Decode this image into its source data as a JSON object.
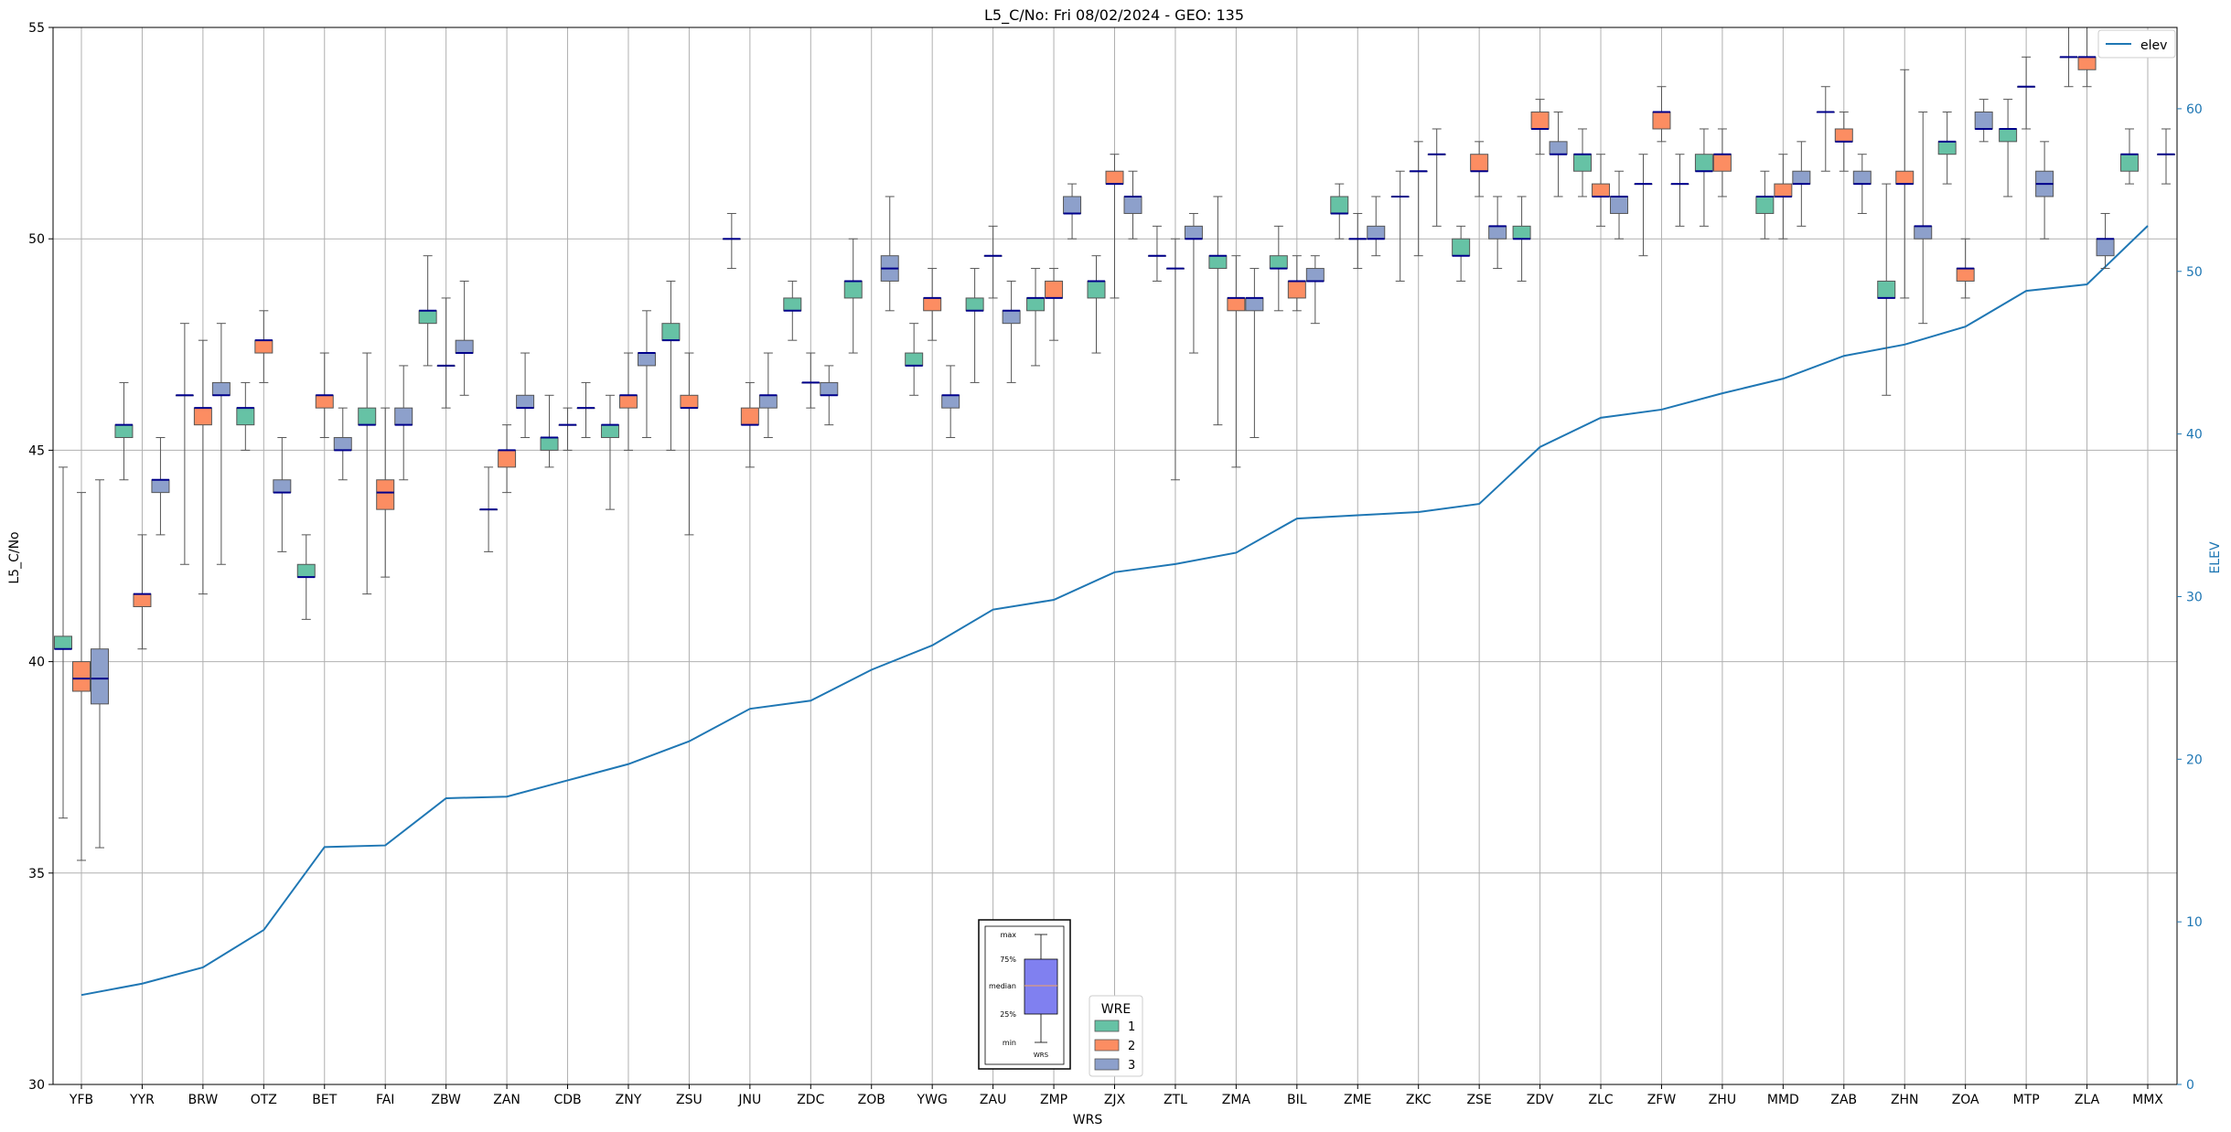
{
  "chart_data": {
    "type": "box",
    "title": "L5_C/No: Fri 08/02/2024 - GEO: 135",
    "xlabel": "WRS",
    "ylabel": "L5_C/No",
    "y2label": "ELEV",
    "ylim": [
      30,
      55
    ],
    "y2lim": [
      0,
      65
    ],
    "yticks": [
      30,
      35,
      40,
      45,
      50,
      55
    ],
    "y2ticks": [
      0,
      10,
      20,
      30,
      40,
      50,
      60
    ],
    "grid": true,
    "categories": [
      "YFB",
      "YYR",
      "BRW",
      "OTZ",
      "BET",
      "FAI",
      "ZBW",
      "ZAN",
      "CDB",
      "ZNY",
      "ZSU",
      "JNU",
      "ZDC",
      "ZOB",
      "YWG",
      "ZAU",
      "ZMP",
      "ZJX",
      "ZTL",
      "ZMA",
      "BIL",
      "ZME",
      "ZKC",
      "ZSE",
      "ZDV",
      "ZLC",
      "ZFW",
      "ZHU",
      "MMD",
      "ZAB",
      "ZHN",
      "ZOA",
      "MTP",
      "ZLA",
      "MMX"
    ],
    "legend": {
      "title": "WRE",
      "placement": "lower-center",
      "entries": [
        {
          "label": "1",
          "color": "#66c2a5"
        },
        {
          "label": "2",
          "color": "#fc8d62"
        },
        {
          "label": "3",
          "color": "#8da0cb"
        }
      ]
    },
    "line_legend": {
      "label": "elev",
      "placement": "top-right",
      "color": "#1f77b4"
    },
    "elev": [
      5.5,
      6.2,
      7.2,
      9.5,
      14.6,
      14.7,
      17.6,
      17.7,
      18.7,
      19.7,
      21.1,
      23.1,
      23.6,
      25.5,
      27.0,
      29.2,
      29.8,
      31.5,
      32.0,
      32.7,
      34.8,
      35.0,
      35.2,
      35.7,
      39.2,
      41.0,
      41.5,
      42.5,
      43.4,
      44.8,
      45.5,
      46.6,
      48.8,
      49.2,
      52.8
    ],
    "boxes": [
      {
        "cat": "YFB",
        "wre": 1,
        "min": 36.3,
        "q1": 40.3,
        "median": 40.3,
        "q3": 40.6,
        "max": 44.6
      },
      {
        "cat": "YFB",
        "wre": 2,
        "min": 35.3,
        "q1": 39.3,
        "median": 39.6,
        "q3": 40.0,
        "max": 44.0
      },
      {
        "cat": "YFB",
        "wre": 3,
        "min": 35.6,
        "q1": 39.0,
        "median": 39.6,
        "q3": 40.3,
        "max": 44.3
      },
      {
        "cat": "YYR",
        "wre": 1,
        "min": 44.3,
        "q1": 45.3,
        "median": 45.6,
        "q3": 45.6,
        "max": 46.6
      },
      {
        "cat": "YYR",
        "wre": 2,
        "min": 40.3,
        "q1": 41.3,
        "median": 41.6,
        "q3": 41.6,
        "max": 43.0
      },
      {
        "cat": "YYR",
        "wre": 3,
        "min": 43.0,
        "q1": 44.0,
        "median": 44.3,
        "q3": 44.3,
        "max": 45.3
      },
      {
        "cat": "BRW",
        "wre": 1,
        "min": 42.3,
        "q1": 46.3,
        "median": 46.3,
        "q3": 46.3,
        "max": 48.0
      },
      {
        "cat": "BRW",
        "wre": 2,
        "min": 41.6,
        "q1": 45.6,
        "median": 46.0,
        "q3": 46.0,
        "max": 47.6
      },
      {
        "cat": "BRW",
        "wre": 3,
        "min": 42.3,
        "q1": 46.3,
        "median": 46.3,
        "q3": 46.6,
        "max": 48.0
      },
      {
        "cat": "OTZ",
        "wre": 1,
        "min": 45.0,
        "q1": 45.6,
        "median": 46.0,
        "q3": 46.0,
        "max": 46.6
      },
      {
        "cat": "OTZ",
        "wre": 2,
        "min": 46.6,
        "q1": 47.3,
        "median": 47.6,
        "q3": 47.6,
        "max": 48.3
      },
      {
        "cat": "OTZ",
        "wre": 3,
        "min": 42.6,
        "q1": 44.0,
        "median": 44.0,
        "q3": 44.3,
        "max": 45.3
      },
      {
        "cat": "BET",
        "wre": 1,
        "min": 41.0,
        "q1": 42.0,
        "median": 42.0,
        "q3": 42.3,
        "max": 43.0
      },
      {
        "cat": "BET",
        "wre": 2,
        "min": 45.3,
        "q1": 46.0,
        "median": 46.3,
        "q3": 46.3,
        "max": 47.3
      },
      {
        "cat": "BET",
        "wre": 3,
        "min": 44.3,
        "q1": 45.0,
        "median": 45.0,
        "q3": 45.3,
        "max": 46.0
      },
      {
        "cat": "FAI",
        "wre": 1,
        "min": 41.6,
        "q1": 45.6,
        "median": 45.6,
        "q3": 46.0,
        "max": 47.3
      },
      {
        "cat": "FAI",
        "wre": 2,
        "min": 42.0,
        "q1": 43.6,
        "median": 44.0,
        "q3": 44.3,
        "max": 46.0
      },
      {
        "cat": "FAI",
        "wre": 3,
        "min": 44.3,
        "q1": 45.6,
        "median": 45.6,
        "q3": 46.0,
        "max": 47.0
      },
      {
        "cat": "ZBW",
        "wre": 1,
        "min": 47.0,
        "q1": 48.0,
        "median": 48.3,
        "q3": 48.3,
        "max": 49.6
      },
      {
        "cat": "ZBW",
        "wre": 2,
        "min": 46.0,
        "q1": 47.0,
        "median": 47.0,
        "q3": 47.0,
        "max": 48.6
      },
      {
        "cat": "ZBW",
        "wre": 3,
        "min": 46.3,
        "q1": 47.3,
        "median": 47.3,
        "q3": 47.6,
        "max": 49.0
      },
      {
        "cat": "ZAN",
        "wre": 1,
        "min": 42.6,
        "q1": 43.6,
        "median": 43.6,
        "q3": 43.6,
        "max": 44.6
      },
      {
        "cat": "ZAN",
        "wre": 2,
        "min": 44.0,
        "q1": 44.6,
        "median": 45.0,
        "q3": 45.0,
        "max": 45.6
      },
      {
        "cat": "ZAN",
        "wre": 3,
        "min": 45.3,
        "q1": 46.0,
        "median": 46.0,
        "q3": 46.3,
        "max": 47.3
      },
      {
        "cat": "CDB",
        "wre": 1,
        "min": 44.6,
        "q1": 45.0,
        "median": 45.3,
        "q3": 45.3,
        "max": 46.3
      },
      {
        "cat": "CDB",
        "wre": 2,
        "min": 45.0,
        "q1": 45.6,
        "median": 45.6,
        "q3": 45.6,
        "max": 46.0
      },
      {
        "cat": "CDB",
        "wre": 3,
        "min": 45.3,
        "q1": 46.0,
        "median": 46.0,
        "q3": 46.0,
        "max": 46.6
      },
      {
        "cat": "ZNY",
        "wre": 1,
        "min": 43.6,
        "q1": 45.3,
        "median": 45.6,
        "q3": 45.6,
        "max": 46.3
      },
      {
        "cat": "ZNY",
        "wre": 2,
        "min": 45.0,
        "q1": 46.0,
        "median": 46.3,
        "q3": 46.3,
        "max": 47.3
      },
      {
        "cat": "ZNY",
        "wre": 3,
        "min": 45.3,
        "q1": 47.0,
        "median": 47.3,
        "q3": 47.3,
        "max": 48.3
      },
      {
        "cat": "ZSU",
        "wre": 1,
        "min": 45.0,
        "q1": 47.6,
        "median": 47.6,
        "q3": 48.0,
        "max": 49.0
      },
      {
        "cat": "ZSU",
        "wre": 2,
        "min": 43.0,
        "q1": 46.0,
        "median": 46.0,
        "q3": 46.3,
        "max": 47.3
      },
      {
        "cat": "JNU",
        "wre": 1,
        "min": 49.3,
        "q1": 50.0,
        "median": 50.0,
        "q3": 50.0,
        "max": 50.6
      },
      {
        "cat": "JNU",
        "wre": 2,
        "min": 44.6,
        "q1": 45.6,
        "median": 45.6,
        "q3": 46.0,
        "max": 46.6
      },
      {
        "cat": "JNU",
        "wre": 3,
        "min": 45.3,
        "q1": 46.0,
        "median": 46.3,
        "q3": 46.3,
        "max": 47.3
      },
      {
        "cat": "ZDC",
        "wre": 1,
        "min": 47.6,
        "q1": 48.3,
        "median": 48.3,
        "q3": 48.6,
        "max": 49.0
      },
      {
        "cat": "ZDC",
        "wre": 2,
        "min": 46.0,
        "q1": 46.6,
        "median": 46.6,
        "q3": 46.6,
        "max": 47.3
      },
      {
        "cat": "ZDC",
        "wre": 3,
        "min": 45.6,
        "q1": 46.3,
        "median": 46.3,
        "q3": 46.6,
        "max": 47.0
      },
      {
        "cat": "ZOB",
        "wre": 1,
        "min": 47.3,
        "q1": 48.6,
        "median": 49.0,
        "q3": 49.0,
        "max": 50.0
      },
      {
        "cat": "ZOB",
        "wre": 3,
        "min": 48.3,
        "q1": 49.0,
        "median": 49.3,
        "q3": 49.6,
        "max": 51.0
      },
      {
        "cat": "YWG",
        "wre": 1,
        "min": 46.3,
        "q1": 47.0,
        "median": 47.0,
        "q3": 47.3,
        "max": 48.0
      },
      {
        "cat": "YWG",
        "wre": 2,
        "min": 47.6,
        "q1": 48.3,
        "median": 48.6,
        "q3": 48.6,
        "max": 49.3
      },
      {
        "cat": "YWG",
        "wre": 3,
        "min": 45.3,
        "q1": 46.0,
        "median": 46.3,
        "q3": 46.3,
        "max": 47.0
      },
      {
        "cat": "ZAU",
        "wre": 1,
        "min": 46.6,
        "q1": 48.3,
        "median": 48.3,
        "q3": 48.6,
        "max": 49.3
      },
      {
        "cat": "ZAU",
        "wre": 2,
        "min": 48.6,
        "q1": 49.6,
        "median": 49.6,
        "q3": 49.6,
        "max": 50.3
      },
      {
        "cat": "ZAU",
        "wre": 3,
        "min": 46.6,
        "q1": 48.0,
        "median": 48.3,
        "q3": 48.3,
        "max": 49.0
      },
      {
        "cat": "ZMP",
        "wre": 1,
        "min": 47.0,
        "q1": 48.3,
        "median": 48.6,
        "q3": 48.6,
        "max": 49.3
      },
      {
        "cat": "ZMP",
        "wre": 2,
        "min": 47.6,
        "q1": 48.6,
        "median": 48.6,
        "q3": 49.0,
        "max": 49.3
      },
      {
        "cat": "ZMP",
        "wre": 3,
        "min": 50.0,
        "q1": 50.6,
        "median": 50.6,
        "q3": 51.0,
        "max": 51.3
      },
      {
        "cat": "ZJX",
        "wre": 1,
        "min": 47.3,
        "q1": 48.6,
        "median": 49.0,
        "q3": 49.0,
        "max": 49.6
      },
      {
        "cat": "ZJX",
        "wre": 2,
        "min": 48.6,
        "q1": 51.3,
        "median": 51.3,
        "q3": 51.6,
        "max": 52.0
      },
      {
        "cat": "ZJX",
        "wre": 3,
        "min": 50.0,
        "q1": 50.6,
        "median": 51.0,
        "q3": 51.0,
        "max": 51.6
      },
      {
        "cat": "ZTL",
        "wre": 1,
        "min": 49.0,
        "q1": 49.6,
        "median": 49.6,
        "q3": 49.6,
        "max": 50.3
      },
      {
        "cat": "ZTL",
        "wre": 2,
        "min": 44.3,
        "q1": 49.3,
        "median": 49.3,
        "q3": 49.3,
        "max": 50.0
      },
      {
        "cat": "ZTL",
        "wre": 3,
        "min": 47.3,
        "q1": 50.0,
        "median": 50.0,
        "q3": 50.3,
        "max": 50.6
      },
      {
        "cat": "ZMA",
        "wre": 1,
        "min": 45.6,
        "q1": 49.3,
        "median": 49.6,
        "q3": 49.6,
        "max": 51.0
      },
      {
        "cat": "ZMA",
        "wre": 2,
        "min": 44.6,
        "q1": 48.3,
        "median": 48.6,
        "q3": 48.6,
        "max": 49.6
      },
      {
        "cat": "ZMA",
        "wre": 3,
        "min": 45.3,
        "q1": 48.3,
        "median": 48.6,
        "q3": 48.6,
        "max": 49.3
      },
      {
        "cat": "BIL",
        "wre": 1,
        "min": 48.3,
        "q1": 49.3,
        "median": 49.3,
        "q3": 49.6,
        "max": 50.3
      },
      {
        "cat": "BIL",
        "wre": 2,
        "min": 48.3,
        "q1": 48.6,
        "median": 49.0,
        "q3": 49.0,
        "max": 49.6
      },
      {
        "cat": "BIL",
        "wre": 3,
        "min": 48.0,
        "q1": 49.0,
        "median": 49.0,
        "q3": 49.3,
        "max": 49.6
      },
      {
        "cat": "ZME",
        "wre": 1,
        "min": 50.0,
        "q1": 50.6,
        "median": 50.6,
        "q3": 51.0,
        "max": 51.3
      },
      {
        "cat": "ZME",
        "wre": 2,
        "min": 49.3,
        "q1": 50.0,
        "median": 50.0,
        "q3": 50.0,
        "max": 50.6
      },
      {
        "cat": "ZME",
        "wre": 3,
        "min": 49.6,
        "q1": 50.0,
        "median": 50.0,
        "q3": 50.3,
        "max": 51.0
      },
      {
        "cat": "ZKC",
        "wre": 1,
        "min": 49.0,
        "q1": 51.0,
        "median": 51.0,
        "q3": 51.0,
        "max": 51.6
      },
      {
        "cat": "ZKC",
        "wre": 2,
        "min": 49.6,
        "q1": 51.6,
        "median": 51.6,
        "q3": 51.6,
        "max": 52.3
      },
      {
        "cat": "ZKC",
        "wre": 3,
        "min": 50.3,
        "q1": 52.0,
        "median": 52.0,
        "q3": 52.0,
        "max": 52.6
      },
      {
        "cat": "ZSE",
        "wre": 1,
        "min": 49.0,
        "q1": 49.6,
        "median": 49.6,
        "q3": 50.0,
        "max": 50.3
      },
      {
        "cat": "ZSE",
        "wre": 2,
        "min": 51.0,
        "q1": 51.6,
        "median": 51.6,
        "q3": 52.0,
        "max": 52.3
      },
      {
        "cat": "ZSE",
        "wre": 3,
        "min": 49.3,
        "q1": 50.0,
        "median": 50.3,
        "q3": 50.3,
        "max": 51.0
      },
      {
        "cat": "ZDV",
        "wre": 1,
        "min": 49.0,
        "q1": 50.0,
        "median": 50.0,
        "q3": 50.3,
        "max": 51.0
      },
      {
        "cat": "ZDV",
        "wre": 2,
        "min": 52.0,
        "q1": 52.6,
        "median": 52.6,
        "q3": 53.0,
        "max": 53.3
      },
      {
        "cat": "ZDV",
        "wre": 3,
        "min": 51.0,
        "q1": 52.0,
        "median": 52.0,
        "q3": 52.3,
        "max": 53.0
      },
      {
        "cat": "ZLC",
        "wre": 1,
        "min": 51.0,
        "q1": 51.6,
        "median": 52.0,
        "q3": 52.0,
        "max": 52.6
      },
      {
        "cat": "ZLC",
        "wre": 2,
        "min": 50.3,
        "q1": 51.0,
        "median": 51.0,
        "q3": 51.3,
        "max": 52.0
      },
      {
        "cat": "ZLC",
        "wre": 3,
        "min": 50.0,
        "q1": 50.6,
        "median": 51.0,
        "q3": 51.0,
        "max": 51.6
      },
      {
        "cat": "ZFW",
        "wre": 1,
        "min": 49.6,
        "q1": 51.3,
        "median": 51.3,
        "q3": 51.3,
        "max": 52.0
      },
      {
        "cat": "ZFW",
        "wre": 2,
        "min": 52.3,
        "q1": 52.6,
        "median": 53.0,
        "q3": 53.0,
        "max": 53.6
      },
      {
        "cat": "ZFW",
        "wre": 3,
        "min": 50.3,
        "q1": 51.3,
        "median": 51.3,
        "q3": 51.3,
        "max": 52.0
      },
      {
        "cat": "ZHU",
        "wre": 1,
        "min": 50.3,
        "q1": 51.6,
        "median": 51.6,
        "q3": 52.0,
        "max": 52.6
      },
      {
        "cat": "ZHU",
        "wre": 2,
        "min": 51.0,
        "q1": 51.6,
        "median": 52.0,
        "q3": 52.0,
        "max": 52.6
      },
      {
        "cat": "MMD",
        "wre": 1,
        "min": 50.0,
        "q1": 50.6,
        "median": 51.0,
        "q3": 51.0,
        "max": 51.6
      },
      {
        "cat": "MMD",
        "wre": 2,
        "min": 50.0,
        "q1": 51.0,
        "median": 51.0,
        "q3": 51.3,
        "max": 52.0
      },
      {
        "cat": "MMD",
        "wre": 3,
        "min": 50.3,
        "q1": 51.3,
        "median": 51.3,
        "q3": 51.6,
        "max": 52.3
      },
      {
        "cat": "ZAB",
        "wre": 1,
        "min": 51.6,
        "q1": 53.0,
        "median": 53.0,
        "q3": 53.0,
        "max": 53.6
      },
      {
        "cat": "ZAB",
        "wre": 2,
        "min": 51.6,
        "q1": 52.3,
        "median": 52.3,
        "q3": 52.6,
        "max": 53.0
      },
      {
        "cat": "ZAB",
        "wre": 3,
        "min": 50.6,
        "q1": 51.3,
        "median": 51.3,
        "q3": 51.6,
        "max": 52.0
      },
      {
        "cat": "ZHN",
        "wre": 1,
        "min": 46.3,
        "q1": 48.6,
        "median": 48.6,
        "q3": 49.0,
        "max": 51.3
      },
      {
        "cat": "ZHN",
        "wre": 2,
        "min": 48.6,
        "q1": 51.3,
        "median": 51.3,
        "q3": 51.6,
        "max": 54.0
      },
      {
        "cat": "ZHN",
        "wre": 3,
        "min": 48.0,
        "q1": 50.0,
        "median": 50.3,
        "q3": 50.3,
        "max": 53.0
      },
      {
        "cat": "ZOA",
        "wre": 1,
        "min": 51.3,
        "q1": 52.0,
        "median": 52.3,
        "q3": 52.3,
        "max": 53.0
      },
      {
        "cat": "ZOA",
        "wre": 2,
        "min": 48.6,
        "q1": 49.0,
        "median": 49.3,
        "q3": 49.3,
        "max": 50.0
      },
      {
        "cat": "ZOA",
        "wre": 3,
        "min": 52.3,
        "q1": 52.6,
        "median": 52.6,
        "q3": 53.0,
        "max": 53.3
      },
      {
        "cat": "MTP",
        "wre": 1,
        "min": 51.0,
        "q1": 52.3,
        "median": 52.6,
        "q3": 52.6,
        "max": 53.3
      },
      {
        "cat": "MTP",
        "wre": 2,
        "min": 52.6,
        "q1": 53.6,
        "median": 53.6,
        "q3": 53.6,
        "max": 54.3
      },
      {
        "cat": "MTP",
        "wre": 3,
        "min": 50.0,
        "q1": 51.0,
        "median": 51.3,
        "q3": 51.6,
        "max": 52.3
      },
      {
        "cat": "ZLA",
        "wre": 1,
        "min": 53.6,
        "q1": 54.3,
        "median": 54.3,
        "q3": 54.3,
        "max": 55.0
      },
      {
        "cat": "ZLA",
        "wre": 2,
        "min": 53.6,
        "q1": 54.0,
        "median": 54.3,
        "q3": 54.3,
        "max": 55.0
      },
      {
        "cat": "ZLA",
        "wre": 3,
        "min": 49.3,
        "q1": 49.6,
        "median": 50.0,
        "q3": 50.0,
        "max": 50.6
      },
      {
        "cat": "MMX",
        "wre": 1,
        "min": 51.3,
        "q1": 51.6,
        "median": 52.0,
        "q3": 52.0,
        "max": 52.6
      },
      {
        "cat": "MMX",
        "wre": 3,
        "min": 51.3,
        "q1": 52.0,
        "median": 52.0,
        "q3": 52.0,
        "max": 52.6
      }
    ]
  },
  "inset": {
    "labels": [
      "max",
      "75%",
      "median",
      "25%",
      "min"
    ],
    "xlabel": "WRS",
    "box_color": "#8080f0"
  }
}
